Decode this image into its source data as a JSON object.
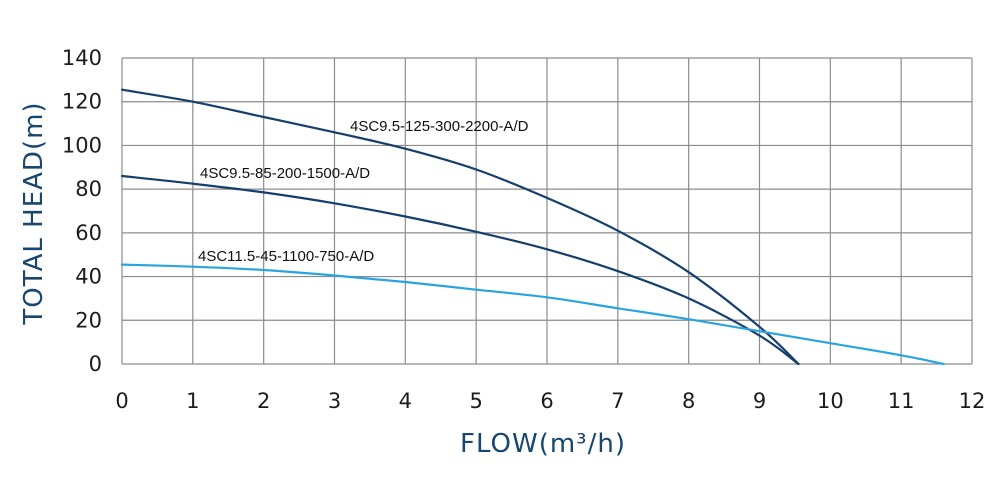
{
  "colors": {
    "dark_curve": "#153f6c",
    "light_curve": "#2aa4df",
    "grid": "#8c8c8c",
    "axis_title": "#17466f"
  },
  "chart_data": {
    "type": "line",
    "xlabel": "FLOW(m³/h)",
    "ylabel": "TOTAL HEAD(m)",
    "xlim": [
      0,
      12
    ],
    "ylim": [
      0,
      140
    ],
    "x_ticks": [
      "0",
      "1",
      "2",
      "3",
      "4",
      "5",
      "6",
      "7",
      "8",
      "9",
      "10",
      "11",
      "12"
    ],
    "y_ticks": [
      "0",
      "20",
      "40",
      "60",
      "80",
      "100",
      "120",
      "140"
    ],
    "grid": true,
    "legend": "inline labels",
    "series": [
      {
        "name": "4SC9.5-125-300-2200-A/D",
        "color": "#153f6c",
        "x": [
          0,
          1,
          2,
          3,
          4,
          5,
          6,
          7,
          8,
          9,
          9.55
        ],
        "y": [
          125.5,
          120,
          113,
          106,
          98.5,
          89,
          76,
          61,
          42,
          17,
          0
        ]
      },
      {
        "name": "4SC9.5-85-200-1500-A/D",
        "color": "#153f6c",
        "x": [
          0,
          1,
          2,
          3,
          4,
          5,
          6,
          7,
          8,
          9,
          9.55
        ],
        "y": [
          86,
          82.5,
          78.5,
          73.5,
          67.5,
          60.5,
          52.5,
          42.5,
          30,
          13,
          0
        ]
      },
      {
        "name": "4SC11.5-45-1100-750-A/D",
        "color": "#2aa4df",
        "x": [
          0,
          1,
          2,
          3,
          4,
          5,
          6,
          7,
          8,
          9,
          10,
          11,
          11.6
        ],
        "y": [
          45.5,
          44.5,
          43,
          40.5,
          37.5,
          34,
          30.5,
          25.5,
          20.5,
          15,
          9.5,
          4,
          0
        ]
      }
    ]
  }
}
